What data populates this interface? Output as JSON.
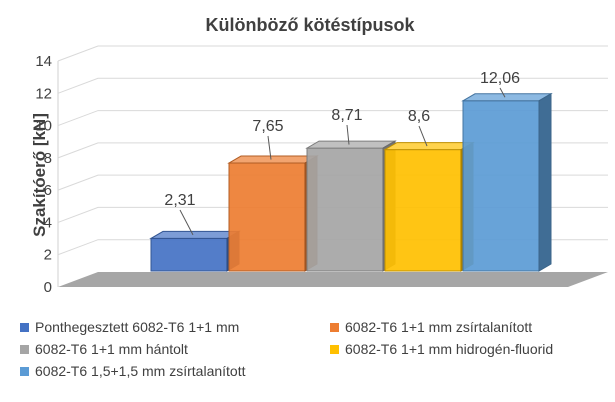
{
  "chart_data": {
    "type": "bar",
    "title": "Különböző kötéstípusok",
    "ylabel": "Szakítóerő [kN]",
    "ylim": [
      0,
      14
    ],
    "yticks": [
      "0",
      "2",
      "4",
      "6",
      "8",
      "10",
      "12",
      "14"
    ],
    "grid": true,
    "legend_position": "bottom",
    "series": [
      {
        "name": "Ponthegesztett 6082-T6 1+1 mm",
        "value": 2.31,
        "label": "2,31",
        "color": "#4472C4"
      },
      {
        "name": "6082-T6 1+1 mm zsírtalanított",
        "value": 7.65,
        "label": "7,65",
        "color": "#ED7D31"
      },
      {
        "name": "6082-T6 1+1 mm hántolt",
        "value": 8.71,
        "label": "8,71",
        "color": "#A5A5A5"
      },
      {
        "name": "6082-T6 1+1 mm hidrogén-fluorid",
        "value": 8.6,
        "label": "8,6",
        "color": "#FFC000"
      },
      {
        "name": "6082-T6 1,5+1,5 mm zsírtalanított",
        "value": 12.06,
        "label": "12,06",
        "color": "#5B9BD5"
      }
    ]
  }
}
